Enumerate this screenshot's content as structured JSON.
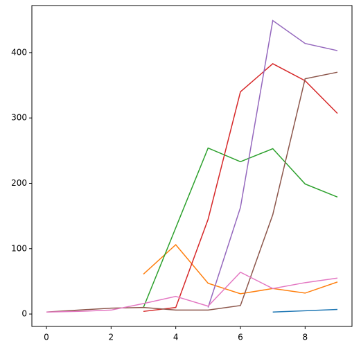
{
  "chart_data": {
    "type": "line",
    "x": [
      0,
      1,
      2,
      3,
      4,
      5,
      6,
      7,
      8,
      9
    ],
    "series": [
      {
        "color": "#1f77b4",
        "values": [
          null,
          null,
          null,
          null,
          null,
          null,
          null,
          3,
          5,
          7
        ]
      },
      {
        "color": "#ff7f0e",
        "values": [
          null,
          null,
          null,
          61,
          106,
          47,
          31,
          39,
          32,
          49
        ]
      },
      {
        "color": "#2ca02c",
        "values": [
          null,
          null,
          null,
          10,
          132,
          254,
          233,
          253,
          199,
          179
        ]
      },
      {
        "color": "#d62728",
        "values": [
          null,
          null,
          null,
          4,
          10,
          145,
          340,
          383,
          357,
          307
        ]
      },
      {
        "color": "#9467bd",
        "values": [
          null,
          null,
          null,
          null,
          null,
          10,
          163,
          449,
          414,
          403
        ]
      },
      {
        "color": "#8c564b",
        "values": [
          3,
          6,
          9,
          10,
          6,
          6,
          13,
          152,
          360,
          370
        ]
      },
      {
        "color": "#e377c2",
        "values": [
          3,
          4,
          6,
          16,
          27,
          12,
          64,
          39,
          48,
          55
        ]
      }
    ],
    "xlim": [
      -0.45,
      9.45
    ],
    "xticks": [
      0,
      2,
      4,
      6,
      8
    ],
    "ylim": [
      -19,
      472
    ],
    "yticks": [
      0,
      100,
      200,
      300,
      400
    ]
  }
}
